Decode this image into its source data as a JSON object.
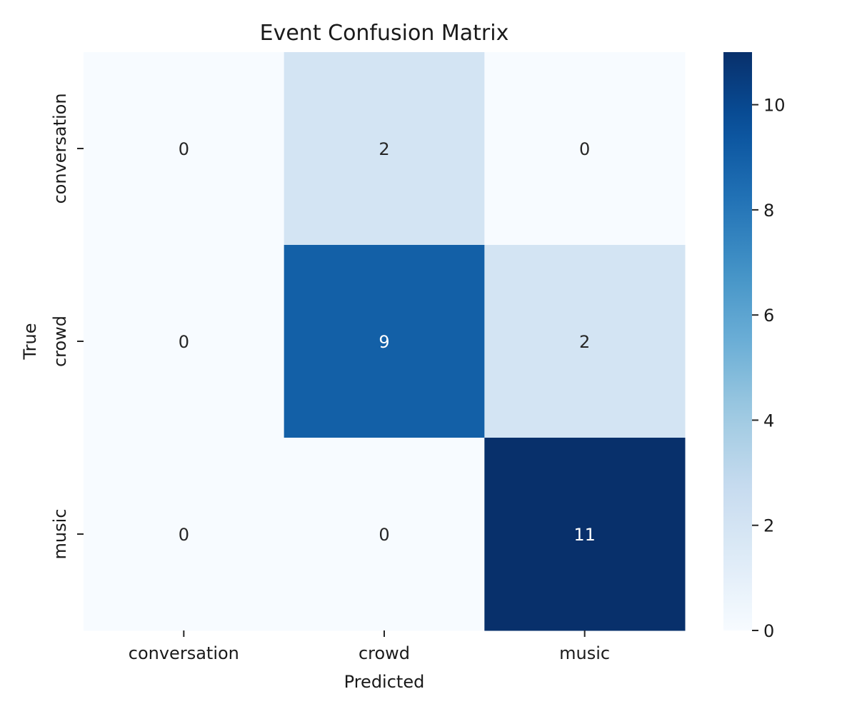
{
  "chart_data": {
    "type": "heatmap",
    "title": "Event Confusion Matrix",
    "xlabel": "Predicted",
    "ylabel": "True",
    "x_categories": [
      "conversation",
      "crowd",
      "music"
    ],
    "y_categories": [
      "conversation",
      "crowd",
      "music"
    ],
    "values": [
      [
        0,
        2,
        0
      ],
      [
        0,
        9,
        2
      ],
      [
        0,
        0,
        11
      ]
    ],
    "colorbar": {
      "min": 0,
      "max": 11,
      "ticks": [
        0,
        2,
        4,
        6,
        8,
        10
      ],
      "colormap": "Blues",
      "low_color": "#f7fbff",
      "high_color": "#08306b"
    }
  }
}
